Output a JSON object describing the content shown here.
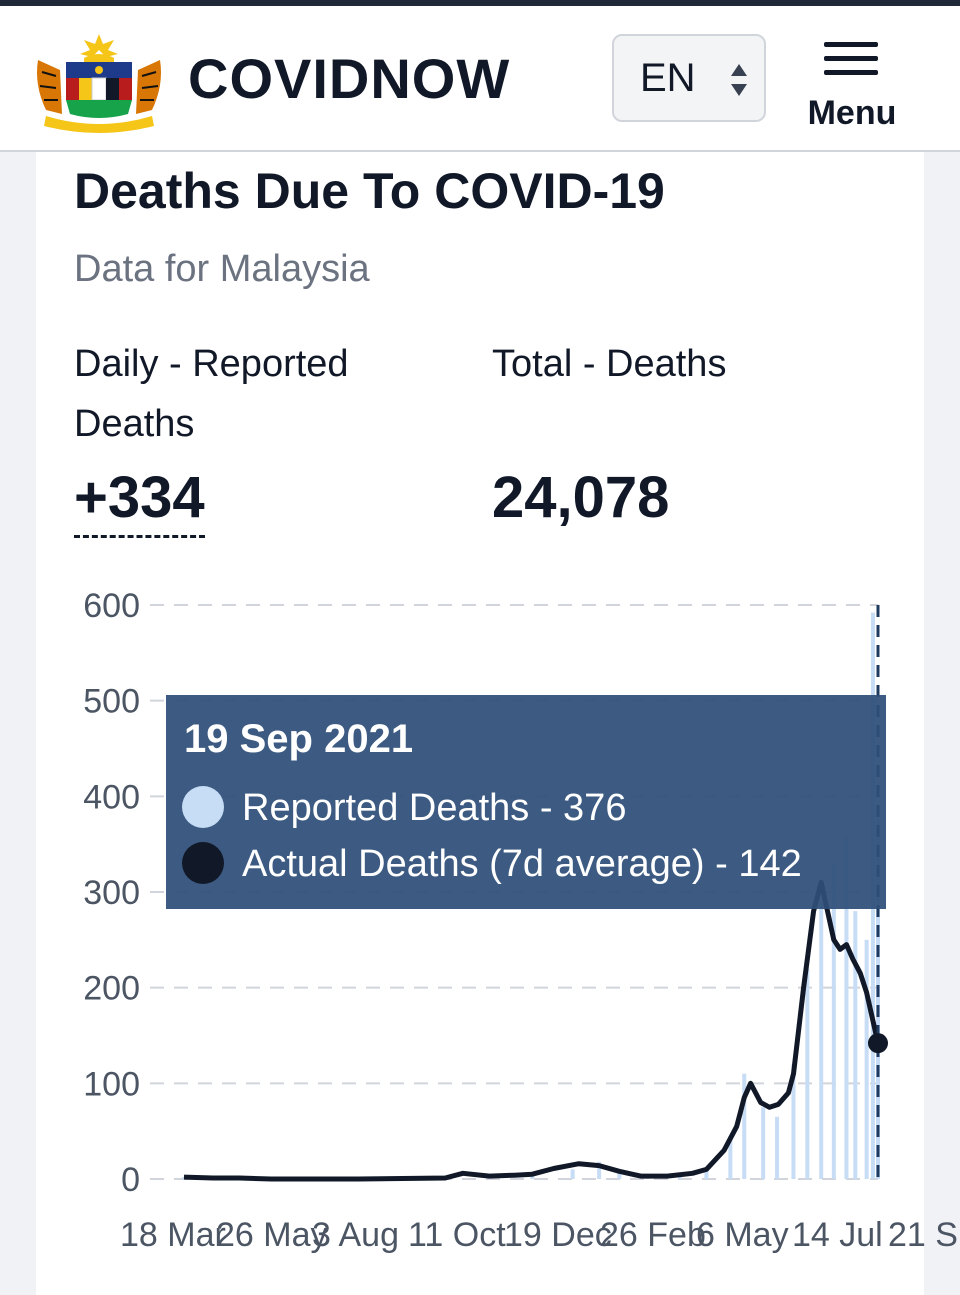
{
  "header": {
    "brand": "COVIDNOW",
    "language": "EN",
    "menu_label": "Menu",
    "logo_icon": "malaysia-coat-of-arms-icon",
    "menu_icon": "hamburger-menu-icon"
  },
  "main": {
    "title": "Deaths Due To COVID-19",
    "subtitle": "Data for Malaysia",
    "stats": [
      {
        "label": "Daily - Reported Deaths",
        "value": "+334"
      },
      {
        "label": "Total - Deaths",
        "value": "24,078"
      }
    ]
  },
  "tooltip": {
    "date": "19 Sep 2021",
    "rows": [
      {
        "text": "Reported Deaths - 376",
        "color": "#c7dcf5"
      },
      {
        "text": "Actual Deaths (7d average) - 142",
        "color": "#111827"
      }
    ]
  },
  "colors": {
    "bar": "#c7dcf5",
    "line": "#111827",
    "tooltip_bg": "#2e4f78",
    "marker_line": "#1e3a5f"
  },
  "chart_data": {
    "type": "line",
    "title": "",
    "xlabel": "",
    "ylabel": "",
    "ylim": [
      0,
      600
    ],
    "yticks": [
      0,
      100,
      200,
      300,
      400,
      500,
      600
    ],
    "xticks": [
      "18 Mar",
      "26 May",
      "3 Aug",
      "11 Oct",
      "19 Dec",
      "26 Feb",
      "6 May",
      "14 Jul",
      "21 S"
    ],
    "grid": true,
    "legend": "none",
    "series": [
      {
        "name": "Reported Deaths",
        "kind": "bar",
        "x": [
          "2020-03-18",
          "2020-04-15",
          "2020-05-26",
          "2020-08-03",
          "2020-10-11",
          "2020-11-15",
          "2020-12-19",
          "2021-01-20",
          "2021-02-10",
          "2021-02-26",
          "2021-03-20",
          "2021-04-15",
          "2021-05-06",
          "2021-05-25",
          "2021-06-05",
          "2021-06-20",
          "2021-07-01",
          "2021-07-14",
          "2021-07-25",
          "2021-08-05",
          "2021-08-15",
          "2021-08-25",
          "2021-09-01",
          "2021-09-10",
          "2021-09-15",
          "2021-09-19"
        ],
        "values": [
          2,
          1,
          0,
          0,
          1,
          4,
          3,
          10,
          18,
          8,
          4,
          3,
          12,
          45,
          110,
          75,
          65,
          120,
          220,
          290,
          330,
          360,
          280,
          250,
          592,
          376
        ]
      },
      {
        "name": "Actual Deaths (7d average)",
        "kind": "line",
        "x": [
          "2020-03-18",
          "2020-04-10",
          "2020-05-01",
          "2020-05-26",
          "2020-08-03",
          "2020-10-11",
          "2020-10-25",
          "2020-11-15",
          "2020-12-05",
          "2020-12-19",
          "2021-01-05",
          "2021-01-25",
          "2021-02-10",
          "2021-02-26",
          "2021-03-15",
          "2021-04-05",
          "2021-04-25",
          "2021-05-06",
          "2021-05-20",
          "2021-05-30",
          "2021-06-05",
          "2021-06-10",
          "2021-06-18",
          "2021-06-25",
          "2021-07-02",
          "2021-07-10",
          "2021-07-14",
          "2021-07-22",
          "2021-07-30",
          "2021-08-05",
          "2021-08-10",
          "2021-08-15",
          "2021-08-20",
          "2021-08-25",
          "2021-08-30",
          "2021-09-05",
          "2021-09-10",
          "2021-09-15",
          "2021-09-19"
        ],
        "values": [
          2,
          1,
          1,
          0,
          0,
          1,
          6,
          3,
          4,
          5,
          11,
          16,
          14,
          8,
          3,
          3,
          6,
          10,
          30,
          55,
          85,
          100,
          80,
          75,
          78,
          90,
          110,
          200,
          280,
          310,
          280,
          250,
          240,
          245,
          230,
          215,
          195,
          165,
          142
        ]
      }
    ]
  }
}
